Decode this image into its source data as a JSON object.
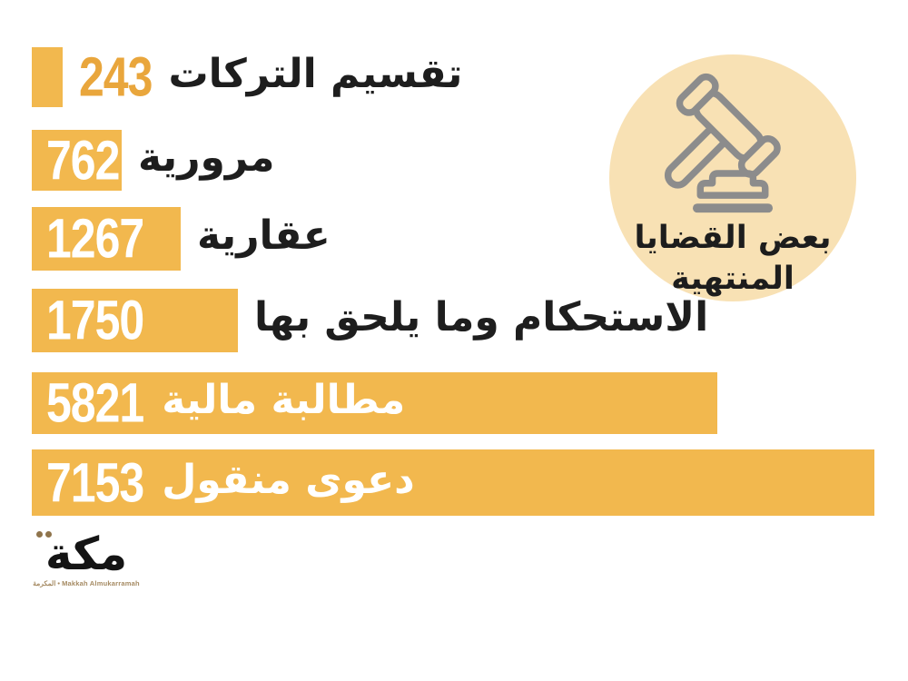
{
  "colors": {
    "bar": "#F2B84E",
    "value_outside": "#E9A63C",
    "value_inside": "#FFFFFF",
    "label": "#1E1E1E",
    "badge_background": "#F8E1B4",
    "badge_icon": "#8C8C8C",
    "logo_accent": "#A58A62"
  },
  "chart_data": {
    "type": "bar",
    "orientation": "horizontal",
    "title": "بعض القضايا المنتهية",
    "categories": [
      "تقسيم التركات",
      "مرورية",
      "عقارية",
      "الاستحكام وما يلحق بها",
      "مطالبة مالية",
      "دعوى منقول"
    ],
    "values": [
      243,
      762,
      1267,
      1750,
      5821,
      7153
    ],
    "xlim": [
      0,
      7153
    ],
    "grid": false,
    "legend": "none",
    "rows": [
      {
        "label": "تقسيم التركات",
        "value": 243,
        "value_text": "243",
        "value_inside": false,
        "label_inside": false
      },
      {
        "label": "مرورية",
        "value": 762,
        "value_text": "762",
        "value_inside": true,
        "label_inside": false
      },
      {
        "label": "عقارية",
        "value": 1267,
        "value_text": "1267",
        "value_inside": true,
        "label_inside": false
      },
      {
        "label": "الاستحكام وما يلحق بها",
        "value": 1750,
        "value_text": "1750",
        "value_inside": true,
        "label_inside": false
      },
      {
        "label": "مطالبة مالية",
        "value": 5821,
        "value_text": "5821",
        "value_inside": true,
        "label_inside": true
      },
      {
        "label": "دعوى منقول",
        "value": 7153,
        "value_text": "7153",
        "value_inside": true,
        "label_inside": true
      }
    ]
  },
  "badge": {
    "icon": "gavel-icon",
    "title_line1": "بعض القضايا",
    "title_line2": "المنتهية"
  },
  "logo": {
    "wordmark": "مكة",
    "tagline": "المكرمة • Makkah Almukarramah"
  }
}
